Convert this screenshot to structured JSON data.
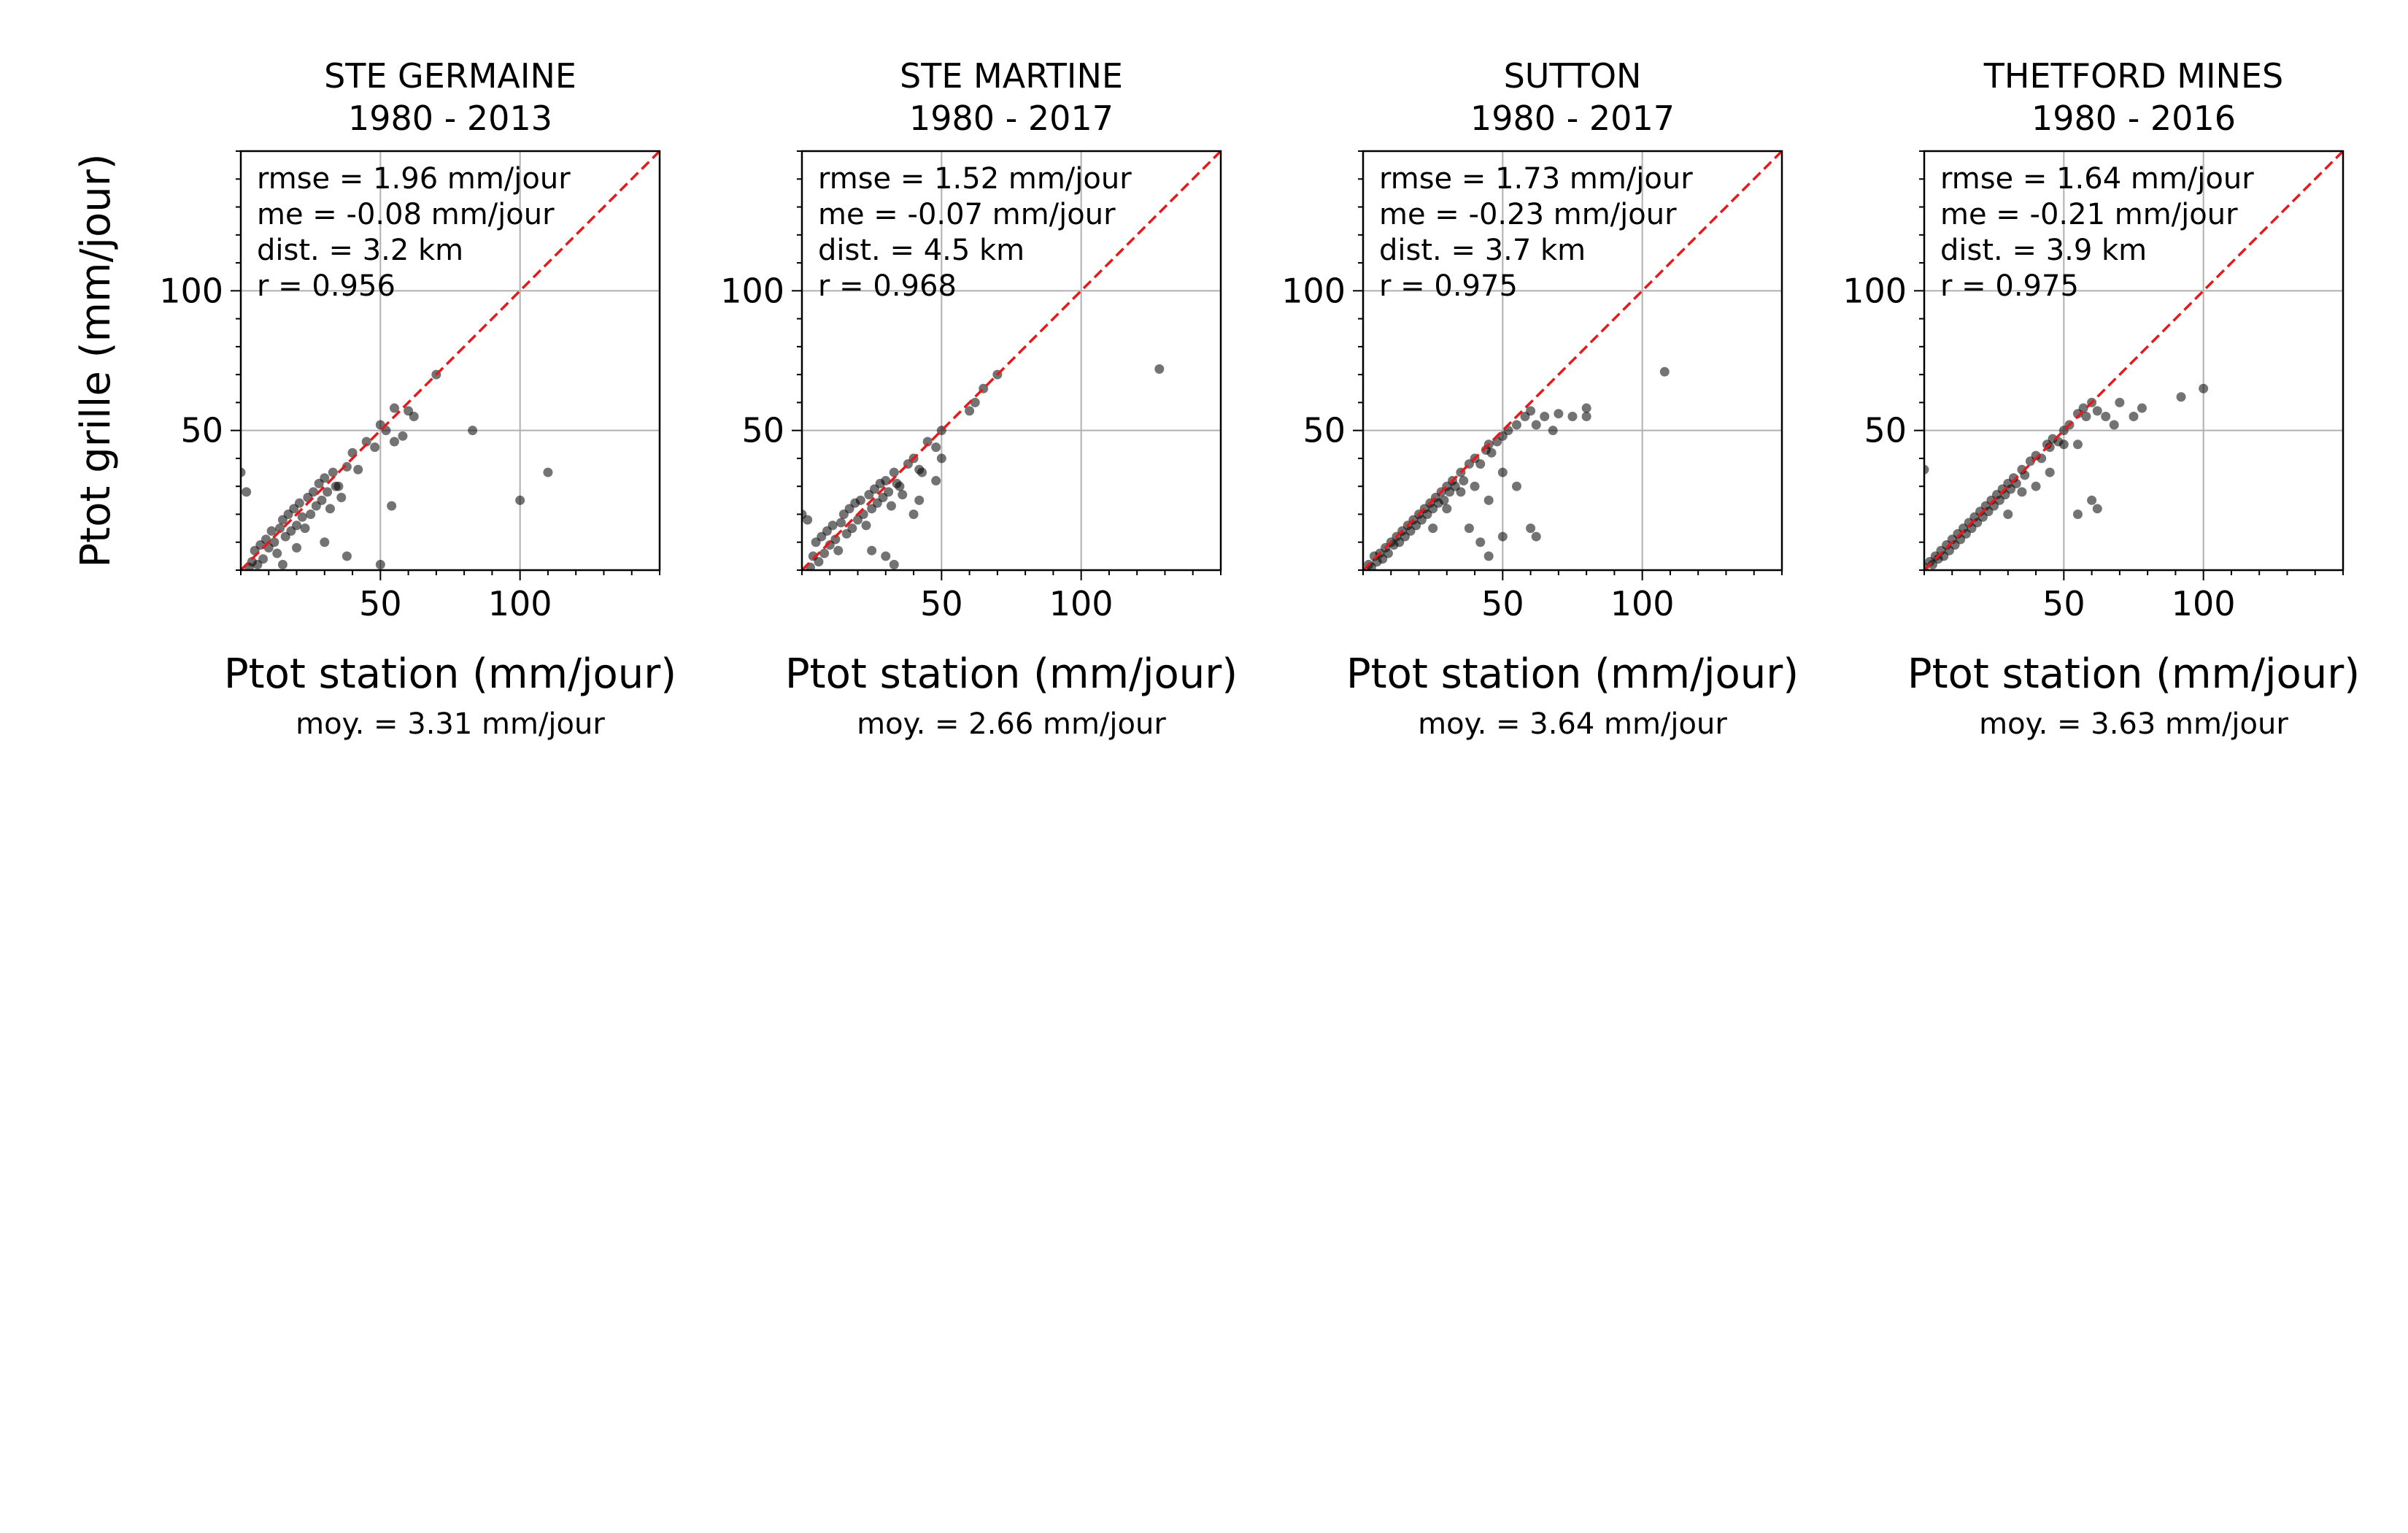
{
  "figure": {
    "ylabel": "Ptot grille (mm/jour)"
  },
  "chart_data": [
    {
      "type": "scatter",
      "title": "STE GERMAINE",
      "subtitle": "1980 - 2013",
      "xlabel": "Ptot station (mm/jour)",
      "ylabel": "Ptot grille (mm/jour)",
      "mean_label": "moy. = 3.31 mm/jour",
      "stats": [
        "rmse = 1.96 mm/jour",
        "me = -0.08 mm/jour",
        "dist. = 3.2 km",
        "r = 0.956"
      ],
      "xlim": [
        0,
        150
      ],
      "ylim": [
        0,
        150
      ],
      "xticks": [
        50,
        100
      ],
      "yticks": [
        50,
        100
      ],
      "grid": true,
      "one_to_one_line": true,
      "point_color": "#000000",
      "line_color": "#e41a1c",
      "points": [
        [
          0,
          35
        ],
        [
          2,
          28
        ],
        [
          3,
          1
        ],
        [
          4,
          3
        ],
        [
          5,
          7
        ],
        [
          6,
          2
        ],
        [
          7,
          9
        ],
        [
          8,
          4
        ],
        [
          9,
          11
        ],
        [
          10,
          8
        ],
        [
          11,
          14
        ],
        [
          12,
          10
        ],
        [
          13,
          6
        ],
        [
          14,
          15
        ],
        [
          15,
          18
        ],
        [
          16,
          12
        ],
        [
          17,
          20
        ],
        [
          18,
          14
        ],
        [
          19,
          22
        ],
        [
          20,
          16
        ],
        [
          21,
          24
        ],
        [
          22,
          19
        ],
        [
          23,
          15
        ],
        [
          24,
          26
        ],
        [
          25,
          20
        ],
        [
          26,
          28
        ],
        [
          27,
          23
        ],
        [
          28,
          31
        ],
        [
          29,
          25
        ],
        [
          30,
          33
        ],
        [
          31,
          28
        ],
        [
          32,
          22
        ],
        [
          33,
          35
        ],
        [
          34,
          30
        ],
        [
          35,
          30
        ],
        [
          36,
          26
        ],
        [
          38,
          37
        ],
        [
          40,
          42
        ],
        [
          42,
          36
        ],
        [
          45,
          46
        ],
        [
          48,
          44
        ],
        [
          50,
          52
        ],
        [
          52,
          50
        ],
        [
          55,
          46
        ],
        [
          55,
          58
        ],
        [
          58,
          48
        ],
        [
          60,
          57
        ],
        [
          62,
          55
        ],
        [
          70,
          70
        ],
        [
          83,
          50
        ],
        [
          100,
          25
        ],
        [
          110,
          35
        ],
        [
          38,
          5
        ],
        [
          50,
          2
        ],
        [
          54,
          23
        ],
        [
          20,
          8
        ],
        [
          15,
          2
        ],
        [
          30,
          10
        ]
      ]
    },
    {
      "type": "scatter",
      "title": "STE MARTINE",
      "subtitle": "1980 - 2017",
      "xlabel": "Ptot station (mm/jour)",
      "ylabel": "",
      "mean_label": "moy. = 2.66 mm/jour",
      "stats": [
        "rmse = 1.52 mm/jour",
        "me = -0.07 mm/jour",
        "dist. = 4.5 km",
        "r = 0.968"
      ],
      "xlim": [
        0,
        150
      ],
      "ylim": [
        0,
        150
      ],
      "xticks": [
        50,
        100
      ],
      "yticks": [
        50,
        100
      ],
      "grid": true,
      "one_to_one_line": true,
      "point_color": "#000000",
      "line_color": "#e41a1c",
      "points": [
        [
          0,
          20
        ],
        [
          2,
          18
        ],
        [
          3,
          1
        ],
        [
          4,
          5
        ],
        [
          5,
          10
        ],
        [
          6,
          3
        ],
        [
          7,
          12
        ],
        [
          8,
          6
        ],
        [
          9,
          14
        ],
        [
          10,
          9
        ],
        [
          11,
          16
        ],
        [
          12,
          11
        ],
        [
          13,
          7
        ],
        [
          14,
          17
        ],
        [
          15,
          20
        ],
        [
          16,
          13
        ],
        [
          17,
          22
        ],
        [
          18,
          15
        ],
        [
          19,
          24
        ],
        [
          20,
          18
        ],
        [
          21,
          25
        ],
        [
          22,
          20
        ],
        [
          23,
          16
        ],
        [
          24,
          27
        ],
        [
          25,
          22
        ],
        [
          26,
          29
        ],
        [
          27,
          24
        ],
        [
          28,
          31
        ],
        [
          29,
          26
        ],
        [
          30,
          32
        ],
        [
          31,
          28
        ],
        [
          32,
          23
        ],
        [
          33,
          35
        ],
        [
          34,
          31
        ],
        [
          35,
          30
        ],
        [
          36,
          27
        ],
        [
          38,
          38
        ],
        [
          40,
          40
        ],
        [
          42,
          36
        ],
        [
          45,
          46
        ],
        [
          48,
          44
        ],
        [
          50,
          50
        ],
        [
          40,
          20
        ],
        [
          42,
          25
        ],
        [
          43,
          35
        ],
        [
          48,
          32
        ],
        [
          50,
          40
        ],
        [
          60,
          57
        ],
        [
          62,
          60
        ],
        [
          65,
          65
        ],
        [
          70,
          70
        ],
        [
          128,
          72
        ],
        [
          30,
          5
        ],
        [
          33,
          2
        ],
        [
          25,
          7
        ]
      ]
    },
    {
      "type": "scatter",
      "title": "SUTTON",
      "subtitle": "1980 - 2017",
      "xlabel": "Ptot station (mm/jour)",
      "ylabel": "",
      "mean_label": "moy. = 3.64 mm/jour",
      "stats": [
        "rmse = 1.73 mm/jour",
        "me = -0.23 mm/jour",
        "dist. = 3.7 km",
        "r = 0.975"
      ],
      "xlim": [
        0,
        150
      ],
      "ylim": [
        0,
        150
      ],
      "xticks": [
        50,
        100
      ],
      "yticks": [
        50,
        100
      ],
      "grid": true,
      "one_to_one_line": true,
      "point_color": "#000000",
      "line_color": "#e41a1c",
      "points": [
        [
          2,
          2
        ],
        [
          3,
          1
        ],
        [
          4,
          5
        ],
        [
          5,
          3
        ],
        [
          6,
          6
        ],
        [
          7,
          4
        ],
        [
          8,
          8
        ],
        [
          9,
          6
        ],
        [
          10,
          10
        ],
        [
          11,
          9
        ],
        [
          12,
          12
        ],
        [
          13,
          10
        ],
        [
          14,
          14
        ],
        [
          15,
          12
        ],
        [
          16,
          16
        ],
        [
          17,
          14
        ],
        [
          18,
          18
        ],
        [
          19,
          16
        ],
        [
          20,
          20
        ],
        [
          21,
          18
        ],
        [
          22,
          22
        ],
        [
          23,
          20
        ],
        [
          24,
          24
        ],
        [
          25,
          22
        ],
        [
          26,
          26
        ],
        [
          27,
          24
        ],
        [
          28,
          28
        ],
        [
          29,
          25
        ],
        [
          30,
          30
        ],
        [
          31,
          28
        ],
        [
          32,
          32
        ],
        [
          33,
          30
        ],
        [
          35,
          35
        ],
        [
          36,
          32
        ],
        [
          38,
          38
        ],
        [
          40,
          40
        ],
        [
          42,
          38
        ],
        [
          44,
          43
        ],
        [
          45,
          45
        ],
        [
          46,
          42
        ],
        [
          48,
          46
        ],
        [
          50,
          48
        ],
        [
          52,
          50
        ],
        [
          55,
          52
        ],
        [
          58,
          55
        ],
        [
          60,
          57
        ],
        [
          62,
          52
        ],
        [
          65,
          55
        ],
        [
          68,
          50
        ],
        [
          70,
          56
        ],
        [
          75,
          55
        ],
        [
          80,
          58
        ],
        [
          80,
          55
        ],
        [
          30,
          22
        ],
        [
          40,
          30
        ],
        [
          45,
          25
        ],
        [
          50,
          35
        ],
        [
          55,
          30
        ],
        [
          38,
          15
        ],
        [
          42,
          10
        ],
        [
          45,
          5
        ],
        [
          50,
          12
        ],
        [
          60,
          15
        ],
        [
          62,
          12
        ],
        [
          108,
          71
        ],
        [
          35,
          28
        ],
        [
          25,
          15
        ]
      ]
    },
    {
      "type": "scatter",
      "title": "THETFORD MINES",
      "subtitle": "1980 - 2016",
      "xlabel": "Ptot station (mm/jour)",
      "ylabel": "",
      "mean_label": "moy. = 3.63 mm/jour",
      "stats": [
        "rmse = 1.64 mm/jour",
        "me = -0.21 mm/jour",
        "dist. = 3.9 km",
        "r = 0.975"
      ],
      "xlim": [
        0,
        150
      ],
      "ylim": [
        0,
        150
      ],
      "xticks": [
        50,
        100
      ],
      "yticks": [
        50,
        100
      ],
      "grid": true,
      "one_to_one_line": true,
      "point_color": "#000000",
      "line_color": "#e41a1c",
      "points": [
        [
          0,
          1
        ],
        [
          0,
          36
        ],
        [
          2,
          3
        ],
        [
          3,
          2
        ],
        [
          4,
          5
        ],
        [
          5,
          4
        ],
        [
          6,
          7
        ],
        [
          7,
          5
        ],
        [
          8,
          9
        ],
        [
          9,
          7
        ],
        [
          10,
          11
        ],
        [
          11,
          9
        ],
        [
          12,
          13
        ],
        [
          13,
          11
        ],
        [
          14,
          15
        ],
        [
          15,
          13
        ],
        [
          16,
          17
        ],
        [
          17,
          15
        ],
        [
          18,
          19
        ],
        [
          19,
          17
        ],
        [
          20,
          21
        ],
        [
          21,
          19
        ],
        [
          22,
          23
        ],
        [
          23,
          21
        ],
        [
          24,
          25
        ],
        [
          25,
          23
        ],
        [
          26,
          27
        ],
        [
          27,
          25
        ],
        [
          28,
          29
        ],
        [
          29,
          27
        ],
        [
          30,
          31
        ],
        [
          31,
          29
        ],
        [
          32,
          33
        ],
        [
          33,
          31
        ],
        [
          35,
          36
        ],
        [
          36,
          34
        ],
        [
          38,
          39
        ],
        [
          40,
          41
        ],
        [
          42,
          40
        ],
        [
          44,
          45
        ],
        [
          45,
          44
        ],
        [
          46,
          47
        ],
        [
          48,
          46
        ],
        [
          50,
          50
        ],
        [
          52,
          52
        ],
        [
          55,
          56
        ],
        [
          57,
          58
        ],
        [
          58,
          55
        ],
        [
          60,
          60
        ],
        [
          62,
          57
        ],
        [
          65,
          55
        ],
        [
          68,
          52
        ],
        [
          70,
          60
        ],
        [
          75,
          55
        ],
        [
          78,
          58
        ],
        [
          92,
          62
        ],
        [
          100,
          65
        ],
        [
          40,
          30
        ],
        [
          45,
          35
        ],
        [
          50,
          45
        ],
        [
          55,
          45
        ],
        [
          60,
          25
        ],
        [
          62,
          22
        ],
        [
          55,
          20
        ],
        [
          30,
          20
        ],
        [
          35,
          28
        ]
      ]
    }
  ]
}
